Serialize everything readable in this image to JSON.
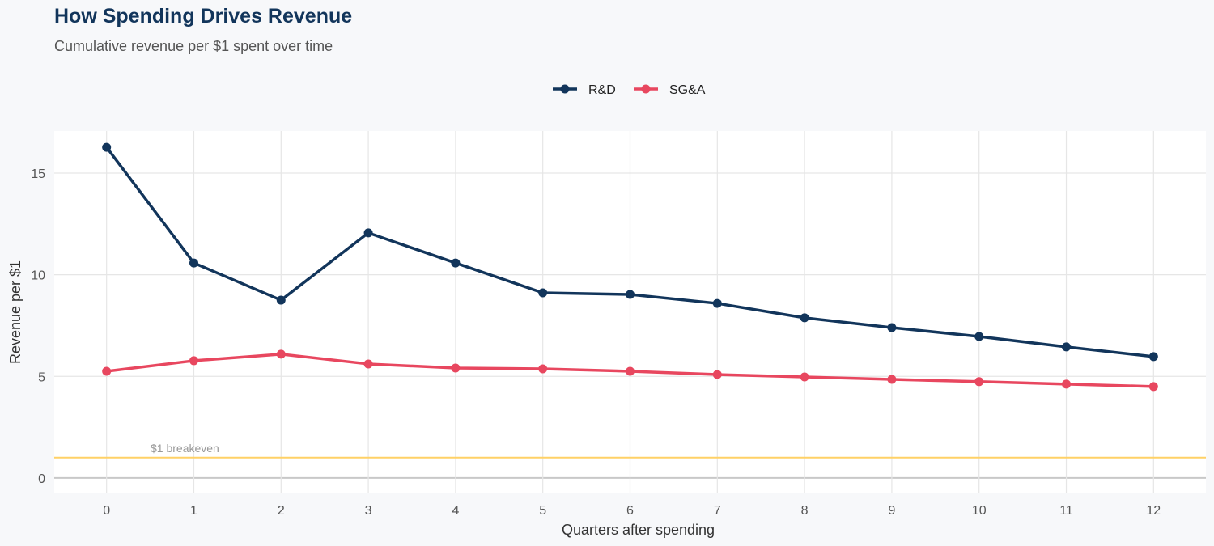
{
  "chart_data": {
    "type": "line",
    "title": "How Spending Drives Revenue",
    "subtitle": "Cumulative revenue per $1 spent over time",
    "xlabel": "Quarters after spending",
    "ylabel": "Revenue per $1",
    "x": [
      0,
      1,
      2,
      3,
      4,
      5,
      6,
      7,
      8,
      9,
      10,
      11,
      12
    ],
    "xlim": [
      -0.6,
      12.6
    ],
    "ylim": [
      -0.76,
      17.07
    ],
    "yticks": [
      0,
      5,
      10,
      15
    ],
    "grid": true,
    "legend_position": "top",
    "series": [
      {
        "name": "R&D",
        "color": "#12355b",
        "values": [
          16.27,
          10.58,
          8.75,
          12.06,
          10.58,
          9.11,
          9.03,
          8.59,
          7.88,
          7.4,
          6.96,
          6.45,
          5.97
        ]
      },
      {
        "name": "SG&A",
        "color": "#e8475f",
        "values": [
          5.25,
          5.77,
          6.09,
          5.61,
          5.41,
          5.37,
          5.25,
          5.09,
          4.97,
          4.85,
          4.74,
          4.62,
          4.5
        ]
      }
    ],
    "reference_line": {
      "y": 1,
      "label": "$1 breakeven",
      "color": "#ffd166"
    }
  }
}
